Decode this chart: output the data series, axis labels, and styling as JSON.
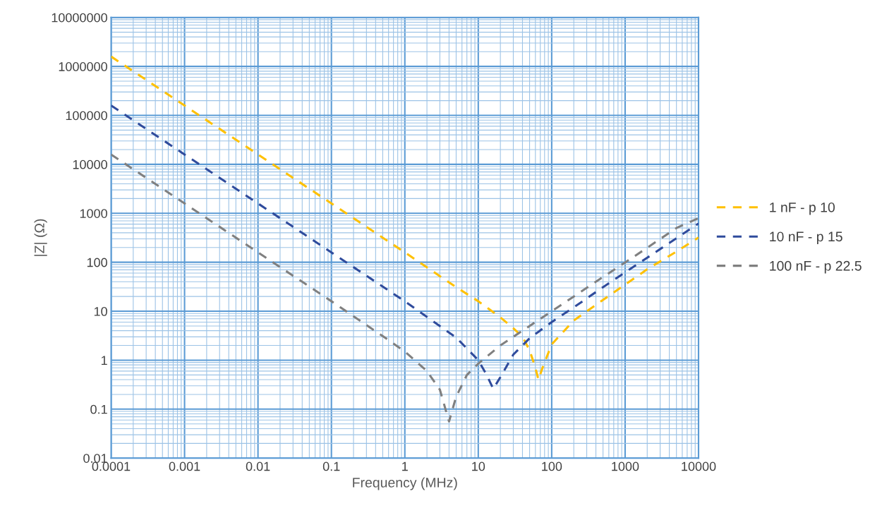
{
  "chart_data": {
    "type": "line",
    "xlabel": "Frequency (MHz)",
    "ylabel": "|Z| (Ω)",
    "log": "xy",
    "grid": true,
    "legend": "right",
    "line_style": "dashed",
    "marker": "none",
    "xlim": [
      0.0001,
      10000
    ],
    "xticks": [
      0.0001,
      {
        "value": 0.0002,
        "label": null
      },
      {
        "value": 0.0003,
        "label": null
      },
      {
        "value": 0.0004,
        "label": null
      },
      {
        "value": 0.0005,
        "label": null
      },
      {
        "value": 0.0006,
        "label": null
      },
      {
        "value": 0.0007,
        "label": null
      },
      {
        "value": 0.0008,
        "label": null
      },
      {
        "value": 0.0009,
        "label": null
      },
      0.001,
      {
        "value": 0.002,
        "label": null
      },
      {
        "value": 0.003,
        "label": null
      },
      {
        "value": 0.004,
        "label": null
      },
      {
        "value": 0.005,
        "label": null
      },
      {
        "value": 0.006,
        "label": null
      },
      {
        "value": 0.007,
        "label": null
      },
      {
        "value": 0.008,
        "label": null
      },
      {
        "value": 0.009,
        "label": null
      },
      0.01,
      {
        "value": 0.02,
        "label": null
      },
      {
        "value": 0.03,
        "label": null
      },
      {
        "value": 0.04,
        "label": null
      },
      {
        "value": 0.05,
        "label": null
      },
      {
        "value": 0.06,
        "label": null
      },
      {
        "value": 0.07,
        "label": null
      },
      {
        "value": 0.08,
        "label": null
      },
      {
        "value": 0.09,
        "label": null
      },
      0.1,
      {
        "value": 0.2,
        "label": null
      },
      {
        "value": 0.3,
        "label": null
      },
      {
        "value": 0.4,
        "label": null
      },
      {
        "value": 0.5,
        "label": null
      },
      {
        "value": 0.6,
        "label": null
      },
      {
        "value": 0.7,
        "label": null
      },
      {
        "value": 0.8,
        "label": null
      },
      {
        "value": 0.9,
        "label": null
      },
      1,
      {
        "value": 2,
        "label": null
      },
      {
        "value": 3,
        "label": null
      },
      {
        "value": 4,
        "label": null
      },
      {
        "value": 5,
        "label": null
      },
      {
        "value": 6,
        "label": null
      },
      {
        "value": 7,
        "label": null
      },
      {
        "value": 8,
        "label": null
      },
      {
        "value": 9,
        "label": null
      },
      10,
      {
        "value": 20,
        "label": null
      },
      {
        "value": 30,
        "label": null
      },
      {
        "value": 40,
        "label": null
      },
      {
        "value": 50,
        "label": null
      },
      {
        "value": 60,
        "label": null
      },
      {
        "value": 70,
        "label": null
      },
      {
        "value": 80,
        "label": null
      },
      {
        "value": 90,
        "label": null
      },
      100,
      {
        "value": 200,
        "label": null
      },
      {
        "value": 300,
        "label": null
      },
      {
        "value": 400,
        "label": null
      },
      {
        "value": 500,
        "label": null
      },
      {
        "value": 600,
        "label": null
      },
      {
        "value": 700,
        "label": null
      },
      {
        "value": 800,
        "label": null
      },
      {
        "value": 900,
        "label": null
      },
      1000,
      {
        "value": 2000,
        "label": null
      },
      {
        "value": 3000,
        "label": null
      },
      {
        "value": 4000,
        "label": null
      },
      {
        "value": 5000,
        "label": null
      },
      {
        "value": 6000,
        "label": null
      },
      {
        "value": 7000,
        "label": null
      },
      {
        "value": 8000,
        "label": null
      },
      {
        "value": 9000,
        "label": null
      },
      10000
    ],
    "ylim": [
      0.01,
      10000000
    ],
    "yticks": [
      0.01,
      {
        "value": 0.02,
        "label": null
      },
      {
        "value": 0.03,
        "label": null
      },
      {
        "value": 0.04,
        "label": null
      },
      {
        "value": 0.05,
        "label": null
      },
      {
        "value": 0.06,
        "label": null
      },
      {
        "value": 0.07,
        "label": null
      },
      {
        "value": 0.08,
        "label": null
      },
      {
        "value": 0.09,
        "label": null
      },
      0.1,
      {
        "value": 0.2,
        "label": null
      },
      {
        "value": 0.3,
        "label": null
      },
      {
        "value": 0.4,
        "label": null
      },
      {
        "value": 0.5,
        "label": null
      },
      {
        "value": 0.6,
        "label": null
      },
      {
        "value": 0.7,
        "label": null
      },
      {
        "value": 0.8,
        "label": null
      },
      {
        "value": 0.9,
        "label": null
      },
      1,
      {
        "value": 2,
        "label": null
      },
      {
        "value": 3,
        "label": null
      },
      {
        "value": 4,
        "label": null
      },
      {
        "value": 5,
        "label": null
      },
      {
        "value": 6,
        "label": null
      },
      {
        "value": 7,
        "label": null
      },
      {
        "value": 8,
        "label": null
      },
      {
        "value": 9,
        "label": null
      },
      10,
      {
        "value": 20,
        "label": null
      },
      {
        "value": 30,
        "label": null
      },
      {
        "value": 40,
        "label": null
      },
      {
        "value": 50,
        "label": null
      },
      {
        "value": 60,
        "label": null
      },
      {
        "value": 70,
        "label": null
      },
      {
        "value": 80,
        "label": null
      },
      {
        "value": 90,
        "label": null
      },
      100,
      {
        "value": 200,
        "label": null
      },
      {
        "value": 300,
        "label": null
      },
      {
        "value": 400,
        "label": null
      },
      {
        "value": 500,
        "label": null
      },
      {
        "value": 600,
        "label": null
      },
      {
        "value": 700,
        "label": null
      },
      {
        "value": 800,
        "label": null
      },
      {
        "value": 900,
        "label": null
      },
      1000,
      {
        "value": 2000,
        "label": null
      },
      {
        "value": 3000,
        "label": null
      },
      {
        "value": 4000,
        "label": null
      },
      {
        "value": 5000,
        "label": null
      },
      {
        "value": 6000,
        "label": null
      },
      {
        "value": 7000,
        "label": null
      },
      {
        "value": 8000,
        "label": null
      },
      {
        "value": 9000,
        "label": null
      },
      10000,
      {
        "value": 20000,
        "label": null
      },
      {
        "value": 30000,
        "label": null
      },
      {
        "value": 40000,
        "label": null
      },
      {
        "value": 50000,
        "label": null
      },
      {
        "value": 60000,
        "label": null
      },
      {
        "value": 70000,
        "label": null
      },
      {
        "value": 80000,
        "label": null
      },
      {
        "value": 90000,
        "label": null
      },
      100000,
      {
        "value": 200000,
        "label": null
      },
      {
        "value": 300000,
        "label": null
      },
      {
        "value": 400000,
        "label": null
      },
      {
        "value": 500000,
        "label": null
      },
      {
        "value": 600000,
        "label": null
      },
      {
        "value": 700000,
        "label": null
      },
      {
        "value": 800000,
        "label": null
      },
      {
        "value": 900000,
        "label": null
      },
      1000000,
      {
        "value": 2000000,
        "label": null
      },
      {
        "value": 3000000,
        "label": null
      },
      {
        "value": 4000000,
        "label": null
      },
      {
        "value": 5000000,
        "label": null
      },
      {
        "value": 6000000,
        "label": null
      },
      {
        "value": 7000000,
        "label": null
      },
      {
        "value": 8000000,
        "label": null
      },
      {
        "value": 9000000,
        "label": null
      },
      10000000
    ],
    "series": [
      {
        "name": "1 nF - p 10",
        "color": "#ffc000",
        "x": [
          0.0001,
          0.001,
          0.01,
          0.1,
          1,
          5,
          10,
          20,
          30,
          40,
          50,
          60,
          66,
          75,
          100,
          200,
          500,
          1000,
          2000,
          5000,
          10000
        ],
        "values": [
          1590000,
          159000,
          15900,
          1590,
          159,
          31,
          16,
          7.5,
          4.5,
          3,
          1.6,
          0.7,
          0.4,
          0.7,
          2.1,
          6.5,
          17,
          35,
          72,
          165,
          320
        ]
      },
      {
        "name": "10 nF - p 15",
        "color": "#2f4b9c",
        "x": [
          0.0001,
          0.001,
          0.01,
          0.1,
          1,
          5,
          10,
          13,
          16,
          20,
          30,
          50,
          100,
          200,
          500,
          1000,
          2000,
          5000,
          10000
        ],
        "values": [
          159000,
          15900,
          1590,
          159,
          15.9,
          2.9,
          1.0,
          0.5,
          0.26,
          0.45,
          1.3,
          2.8,
          6,
          12,
          31,
          62,
          124,
          310,
          620
        ]
      },
      {
        "name": "100 nF - p 22.5",
        "color": "#808080",
        "x": [
          0.0001,
          0.001,
          0.01,
          0.1,
          0.5,
          1,
          2,
          3,
          4,
          5,
          7,
          10,
          20,
          50,
          100,
          200,
          500,
          1000,
          2000,
          5000,
          10000
        ],
        "values": [
          15900,
          1590,
          159,
          16,
          3.1,
          1.5,
          0.6,
          0.25,
          0.056,
          0.18,
          0.5,
          0.85,
          2,
          5,
          10,
          20,
          50,
          99,
          198,
          500,
          800
        ]
      }
    ]
  }
}
